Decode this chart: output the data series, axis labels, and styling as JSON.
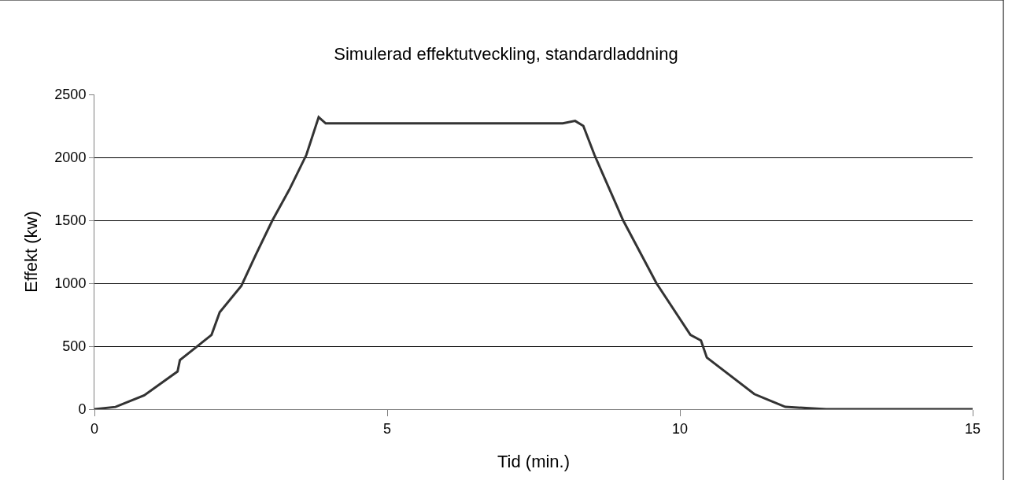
{
  "chart_data": {
    "type": "line",
    "title": "Simulerad effektutveckling, standardladdning",
    "xlabel": "Tid (min.)",
    "ylabel": "Effekt (kw)",
    "x": [
      0,
      0.36,
      0.85,
      1.42,
      1.46,
      2.0,
      2.14,
      2.51,
      2.76,
      3.04,
      3.33,
      3.62,
      3.83,
      3.95,
      5,
      6,
      7,
      8,
      8.21,
      8.35,
      8.54,
      9.03,
      9.6,
      10.18,
      10.36,
      10.46,
      11.27,
      11.8,
      12.5,
      15
    ],
    "series": [
      {
        "color": "#333333",
        "values": [
          0,
          18,
          110,
          300,
          390,
          590,
          770,
          980,
          1230,
          1500,
          1745,
          2020,
          2320,
          2270,
          2270,
          2270,
          2270,
          2270,
          2290,
          2250,
          2020,
          1500,
          1000,
          590,
          545,
          410,
          120,
          18,
          0,
          0
        ]
      }
    ],
    "xlim": [
      0,
      15
    ],
    "xticks": [
      0,
      5,
      10,
      15
    ],
    "ylim": [
      0,
      2500
    ],
    "yticks": [
      0,
      500,
      1000,
      1500,
      2000,
      2500
    ],
    "grid": "y",
    "legend": false,
    "marker": "none",
    "line_style": "solid"
  }
}
